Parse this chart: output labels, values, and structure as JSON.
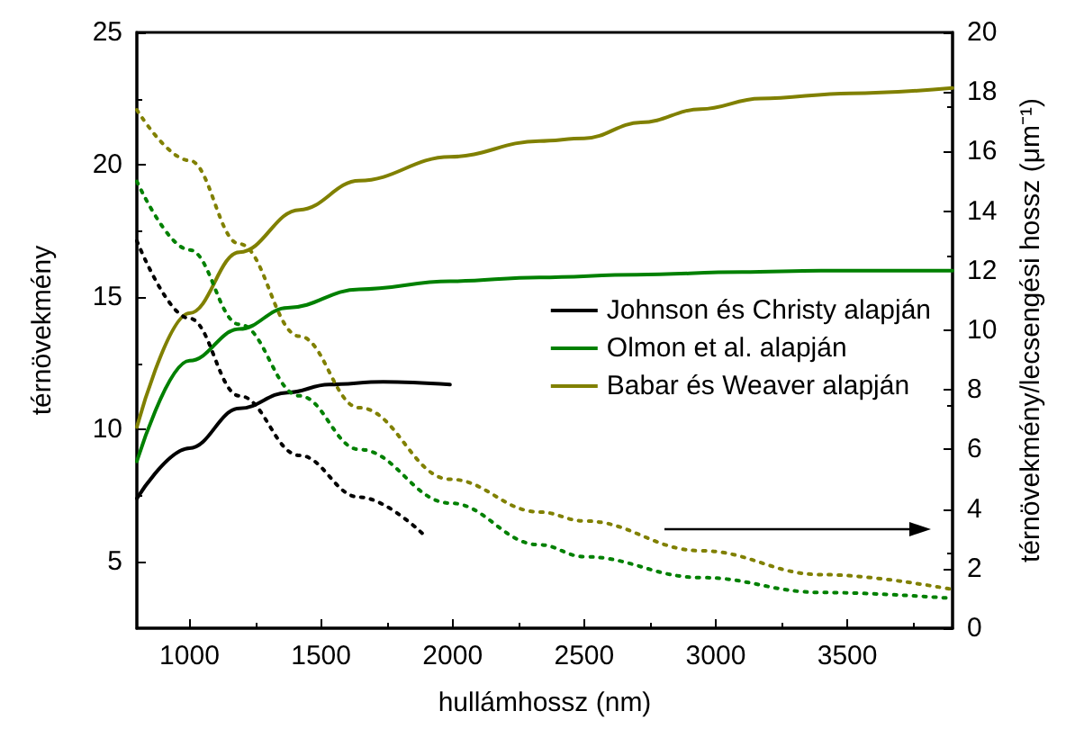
{
  "chart_data": {
    "type": "line",
    "xlabel": "hullámhossz (nm)",
    "ylabel": "térnövekmény",
    "y2label": "térnövekmény/lecsengési hossz (μm⁻¹)",
    "xlim": [
      800,
      3900
    ],
    "xticks": [
      1000,
      1500,
      2000,
      2500,
      3000,
      3500
    ],
    "ylim": [
      2.5,
      25
    ],
    "yticks": [
      5,
      10,
      15,
      20,
      25
    ],
    "y2lim": [
      0,
      20
    ],
    "y2ticks": [
      0,
      2,
      4,
      6,
      8,
      10,
      12,
      14,
      16,
      18,
      20
    ],
    "legend": "right",
    "marker": "none",
    "grid": false,
    "series": [
      {
        "name": "Johnson és Christy alapján",
        "color": "#000000",
        "line_style": "solid",
        "x": [
          800,
          1000,
          1190,
          1373,
          1530,
          1736,
          1990
        ],
        "values": [
          7.4,
          9.3,
          10.8,
          11.4,
          11.7,
          11.8,
          11.7
        ]
      },
      {
        "name": "Olmon et al. alapján",
        "color": "#008000",
        "line_style": "solid",
        "x": [
          800,
          1000,
          1190,
          1373,
          1645,
          1990,
          2330,
          2700,
          3100,
          3400,
          3900
        ],
        "values": [
          8.8,
          12.6,
          13.8,
          14.6,
          15.3,
          15.6,
          15.75,
          15.85,
          15.95,
          16,
          16
        ]
      },
      {
        "name": "Babar és Weaver alapján",
        "color": "#808000",
        "line_style": "solid",
        "x": [
          800,
          1000,
          1190,
          1418,
          1645,
          1990,
          2330,
          2500,
          2716,
          2943,
          3170,
          3511,
          3900
        ],
        "values": [
          10.1,
          14.4,
          16.7,
          18.3,
          19.4,
          20.3,
          20.9,
          21,
          21.6,
          22.1,
          22.5,
          22.7,
          22.9
        ]
      },
      {
        "color": "#000000",
        "line_style": "dotted",
        "axis": "y2",
        "x": [
          800,
          1000,
          1190,
          1418,
          1645,
          1895
        ],
        "values": [
          13,
          10.4,
          7.8,
          5.8,
          4.4,
          3.1
        ]
      },
      {
        "color": "#008000",
        "line_style": "dotted",
        "axis": "y2",
        "x": [
          800,
          1000,
          1190,
          1418,
          1645,
          1990,
          2330,
          2500,
          2943,
          3400,
          3900
        ],
        "values": [
          15,
          12.7,
          10.2,
          7.8,
          6,
          4.2,
          2.8,
          2.4,
          1.7,
          1.2,
          1
        ]
      },
      {
        "color": "#808000",
        "line_style": "dotted",
        "axis": "y2",
        "x": [
          800,
          1000,
          1190,
          1418,
          1645,
          1990,
          2330,
          2500,
          2943,
          3400,
          3900
        ],
        "values": [
          17.4,
          15.7,
          12.9,
          9.8,
          7.4,
          5,
          3.9,
          3.6,
          2.6,
          1.8,
          1.3
        ]
      }
    ]
  }
}
